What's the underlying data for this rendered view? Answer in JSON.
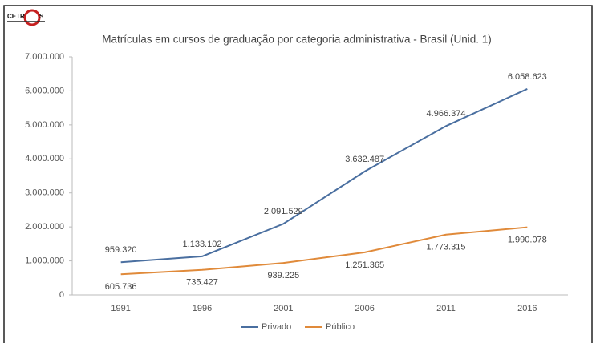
{
  "logo": [
    "CETR",
    "S"
  ],
  "chart_data": {
    "type": "line",
    "title": "Matrículas em cursos de graduação por categoria administrativa - Brasil (Unid. 1)",
    "categories": [
      "1991",
      "1996",
      "2001",
      "2006",
      "2011",
      "2016"
    ],
    "series": [
      {
        "name": "Privado",
        "color": "#4a6fa0",
        "values": [
          959320,
          1133102,
          2091529,
          3632487,
          4966374,
          6058623
        ],
        "value_labels": [
          "959.320",
          "1.133.102",
          "2.091.529",
          "3.632.487",
          "4.966.374",
          "6.058.623"
        ]
      },
      {
        "name": "Público",
        "color": "#e08a3a",
        "values": [
          605736,
          735427,
          939225,
          1251365,
          1773315,
          1990078
        ],
        "value_labels": [
          "605.736",
          "735.427",
          "939.225",
          "1.251.365",
          "1.773.315",
          "1.990.078"
        ]
      }
    ],
    "ylim": [
      0,
      7000000
    ],
    "yticks": [
      0,
      {
        "value": 1000000,
        "label": "1.000.000"
      },
      {
        "value": 2000000,
        "label": "2.000.000"
      },
      {
        "value": 3000000,
        "label": "3.000.000"
      },
      {
        "value": 4000000,
        "label": "4.000.000"
      },
      {
        "value": 5000000,
        "label": "5.000.000"
      },
      {
        "value": 6000000,
        "label": "6.000.000"
      },
      {
        "value": 7000000,
        "label": "7.000.000"
      }
    ],
    "legend": "bottom"
  }
}
